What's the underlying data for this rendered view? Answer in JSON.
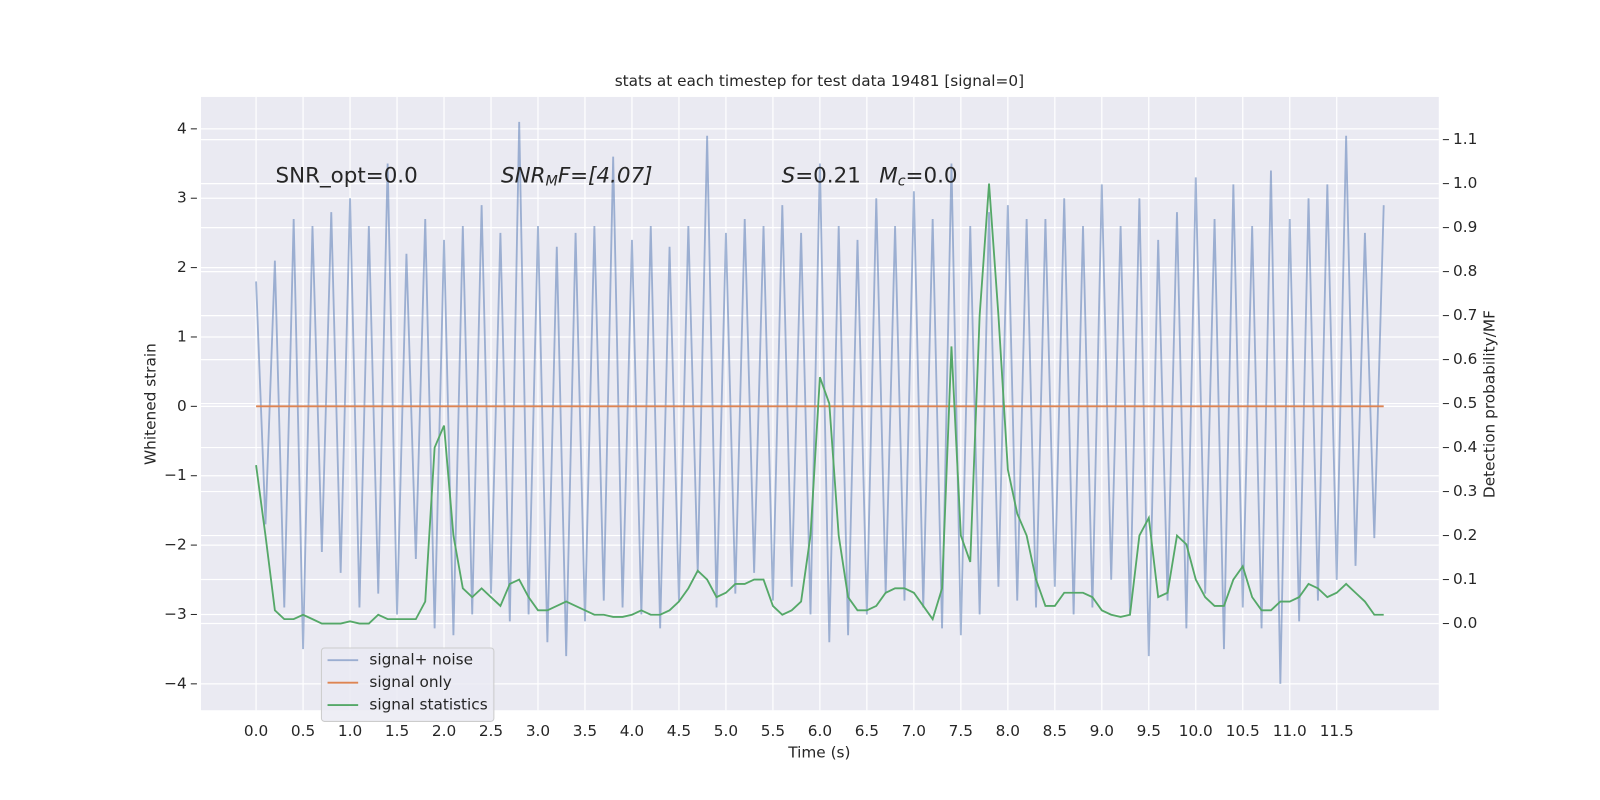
{
  "chart_data": {
    "type": "line",
    "title": "stats at each timestep for test data 19481 [signal=0]",
    "xlabel": "Time (s)",
    "ylabel": "Whitened strain",
    "y2label": "Detection probability/MF",
    "annotations": {
      "snr_opt": "SNR_opt=0.0",
      "snr_mf": [
        "SNR",
        "M",
        "F=[4.07]"
      ],
      "s_mc": [
        "S",
        "=0.21",
        "M",
        "c",
        "=0.0"
      ]
    },
    "x": [
      0.0,
      0.1,
      0.2,
      0.3,
      0.4,
      0.5,
      0.6,
      0.7,
      0.8,
      0.9,
      1.0,
      1.1,
      1.2,
      1.3,
      1.4,
      1.5,
      1.6,
      1.7,
      1.8,
      1.9,
      2.0,
      2.1,
      2.2,
      2.3,
      2.4,
      2.5,
      2.6,
      2.7,
      2.8,
      2.9,
      3.0,
      3.1,
      3.2,
      3.3,
      3.4,
      3.5,
      3.6,
      3.7,
      3.8,
      3.9,
      4.0,
      4.1,
      4.2,
      4.3,
      4.4,
      4.5,
      4.6,
      4.7,
      4.8,
      4.9,
      5.0,
      5.1,
      5.2,
      5.3,
      5.4,
      5.5,
      5.6,
      5.7,
      5.8,
      5.9,
      6.0,
      6.1,
      6.2,
      6.3,
      6.4,
      6.5,
      6.6,
      6.7,
      6.8,
      6.9,
      7.0,
      7.1,
      7.2,
      7.3,
      7.4,
      7.5,
      7.6,
      7.7,
      7.8,
      7.9,
      8.0,
      8.1,
      8.2,
      8.3,
      8.4,
      8.5,
      8.6,
      8.7,
      8.8,
      8.9,
      9.0,
      9.1,
      9.2,
      9.3,
      9.4,
      9.5,
      9.6,
      9.7,
      9.8,
      9.9,
      10.0,
      10.1,
      10.2,
      10.3,
      10.4,
      10.5,
      10.6,
      10.7,
      10.8,
      10.9,
      11.0,
      11.1,
      11.2,
      11.3,
      11.4,
      11.5,
      11.6,
      11.7,
      11.8,
      11.9,
      12.0
    ],
    "series": [
      {
        "name": "signal+ noise",
        "color": "#4c72b0",
        "opacity": 0.5,
        "values": [
          1.8,
          -1.7,
          2.1,
          -2.9,
          2.7,
          -3.5,
          2.6,
          -2.1,
          2.8,
          -2.4,
          3.0,
          -2.9,
          2.6,
          -2.7,
          3.5,
          -3.0,
          2.2,
          -2.2,
          2.7,
          -3.2,
          2.4,
          -3.3,
          2.6,
          -3.0,
          2.9,
          -2.7,
          2.5,
          -3.1,
          4.1,
          -3.0,
          2.6,
          -3.4,
          2.3,
          -3.6,
          2.5,
          -3.1,
          2.6,
          -2.8,
          3.6,
          -2.9,
          2.4,
          -3.0,
          2.6,
          -3.2,
          2.3,
          -2.8,
          2.6,
          -2.4,
          3.9,
          -2.9,
          2.5,
          -2.7,
          2.7,
          -2.4,
          2.6,
          -2.8,
          2.9,
          -2.6,
          2.5,
          -3.0,
          3.5,
          -3.4,
          2.6,
          -3.3,
          2.4,
          -3.0,
          3.0,
          -2.7,
          2.6,
          -2.8,
          3.1,
          -2.9,
          2.7,
          -3.2,
          3.5,
          -3.3,
          2.6,
          -3.0,
          2.8,
          -2.6,
          2.9,
          -2.8,
          2.7,
          -2.9,
          2.7,
          -2.6,
          3.0,
          -3.0,
          2.6,
          -2.9,
          3.2,
          -2.5,
          2.6,
          -3.0,
          3.0,
          -3.6,
          2.4,
          -2.8,
          2.8,
          -3.2,
          3.3,
          -2.7,
          2.7,
          -3.5,
          3.2,
          -2.9,
          2.6,
          -3.2,
          3.4,
          -4.0,
          2.7,
          -3.1,
          3.0,
          -2.8,
          3.2,
          -2.5,
          3.9,
          -2.3,
          2.5,
          -1.9,
          2.9
        ]
      },
      {
        "name": "signal only",
        "color": "#dd8452",
        "opacity": 1,
        "values": [
          0,
          0,
          0,
          0,
          0,
          0,
          0,
          0,
          0,
          0,
          0,
          0,
          0,
          0,
          0,
          0,
          0,
          0,
          0,
          0,
          0,
          0,
          0,
          0,
          0,
          0,
          0,
          0,
          0,
          0,
          0,
          0,
          0,
          0,
          0,
          0,
          0,
          0,
          0,
          0,
          0,
          0,
          0,
          0,
          0,
          0,
          0,
          0,
          0,
          0,
          0,
          0,
          0,
          0,
          0,
          0,
          0,
          0,
          0,
          0,
          0,
          0,
          0,
          0,
          0,
          0,
          0,
          0,
          0,
          0,
          0,
          0,
          0,
          0,
          0,
          0,
          0,
          0,
          0,
          0,
          0,
          0,
          0,
          0,
          0,
          0,
          0,
          0,
          0,
          0,
          0,
          0,
          0,
          0,
          0,
          0,
          0,
          0,
          0,
          0,
          0,
          0,
          0,
          0,
          0,
          0,
          0,
          0,
          0,
          0,
          0,
          0,
          0,
          0,
          0,
          0,
          0,
          0,
          0,
          0,
          0
        ]
      },
      {
        "name": "signal statistics",
        "color": "#55a868",
        "opacity": 1,
        "axis": "y2",
        "values": [
          0.36,
          0.2,
          0.03,
          0.01,
          0.01,
          0.02,
          0.01,
          0.0,
          0.0,
          0.0,
          0.005,
          0.0,
          0.0,
          0.02,
          0.01,
          0.01,
          0.01,
          0.01,
          0.05,
          0.4,
          0.45,
          0.2,
          0.08,
          0.06,
          0.08,
          0.06,
          0.04,
          0.09,
          0.1,
          0.06,
          0.03,
          0.03,
          0.04,
          0.05,
          0.04,
          0.03,
          0.02,
          0.02,
          0.015,
          0.015,
          0.02,
          0.03,
          0.02,
          0.02,
          0.03,
          0.05,
          0.08,
          0.12,
          0.1,
          0.06,
          0.07,
          0.09,
          0.09,
          0.1,
          0.1,
          0.04,
          0.02,
          0.03,
          0.05,
          0.2,
          0.56,
          0.5,
          0.2,
          0.06,
          0.03,
          0.03,
          0.04,
          0.07,
          0.08,
          0.08,
          0.07,
          0.04,
          0.01,
          0.08,
          0.63,
          0.2,
          0.14,
          0.7,
          1.0,
          0.7,
          0.35,
          0.25,
          0.2,
          0.1,
          0.04,
          0.04,
          0.07,
          0.07,
          0.07,
          0.06,
          0.03,
          0.02,
          0.015,
          0.02,
          0.2,
          0.24,
          0.06,
          0.07,
          0.2,
          0.18,
          0.1,
          0.06,
          0.04,
          0.04,
          0.1,
          0.13,
          0.06,
          0.03,
          0.03,
          0.05,
          0.05,
          0.06,
          0.09,
          0.08,
          0.06,
          0.07,
          0.09,
          0.07,
          0.05,
          0.02,
          0.02
        ]
      }
    ],
    "xlim": [
      -0.586,
      12.586
    ],
    "xticks": [
      {
        "value": 0,
        "label": "0.0"
      },
      0.5,
      {
        "value": 1,
        "label": "1.0"
      },
      1.5,
      {
        "value": 2,
        "label": "2.0"
      },
      2.5,
      {
        "value": 3,
        "label": "3.0"
      },
      3.5,
      {
        "value": 4,
        "label": "4.0"
      },
      4.5,
      {
        "value": 5,
        "label": "5.0"
      },
      5.5,
      {
        "value": 6,
        "label": "6.0"
      },
      6.5,
      {
        "value": 7,
        "label": "7.0"
      },
      7.5,
      {
        "value": 8,
        "label": "8.0"
      },
      8.5,
      {
        "value": 9,
        "label": "9.0"
      },
      9.5,
      {
        "value": 10,
        "label": "10.0"
      },
      10.5,
      {
        "value": 11,
        "label": "11.0"
      },
      11.5
    ],
    "ylim": [
      -4.38,
      4.46
    ],
    "yticks": [
      {
        "value": -4,
        "label": "−4"
      },
      {
        "value": -3,
        "label": "−3"
      },
      {
        "value": -2,
        "label": "−2"
      },
      {
        "value": -1,
        "label": "−1"
      },
      0,
      1,
      2,
      3,
      4
    ],
    "y2lim": [
      -0.197,
      1.197
    ],
    "y2ticks": [
      {
        "value": 0,
        "label": "0.0"
      },
      0.1,
      0.2,
      0.3,
      0.4,
      0.5,
      0.6,
      0.7,
      0.8,
      0.9,
      {
        "value": 1,
        "label": "1.0"
      },
      1.1
    ],
    "grid": true,
    "legend": "lower left",
    "background": "#eaeaf2"
  }
}
